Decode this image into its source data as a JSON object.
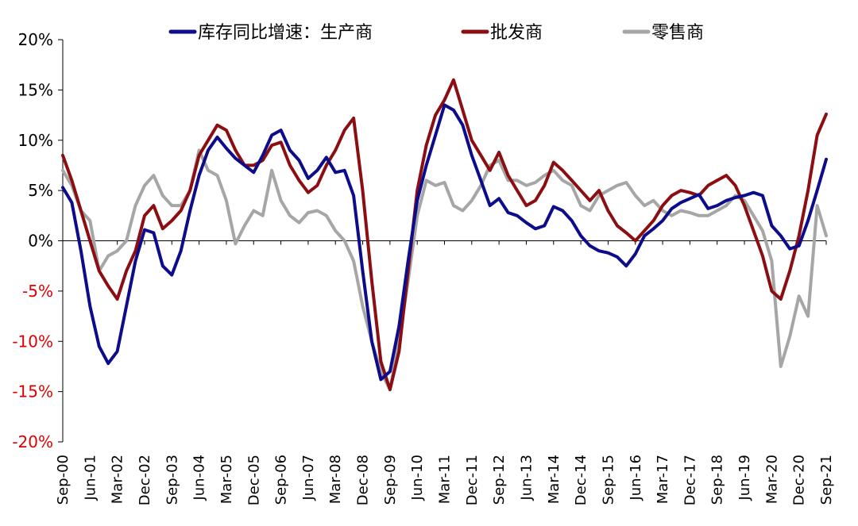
{
  "chart_data": {
    "type": "line",
    "title": "",
    "xlabel": "",
    "ylabel": "",
    "ylim": [
      -20,
      20
    ],
    "y_ticks": [
      "20%",
      "15%",
      "10%",
      "5%",
      "0%",
      "-5%",
      "-10%",
      "-15%",
      "-20%"
    ],
    "y_tick_values": [
      20,
      15,
      10,
      5,
      0,
      -5,
      -10,
      -15,
      -20
    ],
    "negative_tick_color": "#e00000",
    "x_start": "2000-09",
    "x_end": "2021-09",
    "x_ticks": [
      "Sep-00",
      "Jun-01",
      "Mar-02",
      "Dec-02",
      "Sep-03",
      "Jun-04",
      "Mar-05",
      "Dec-05",
      "Sep-06",
      "Jun-07",
      "Mar-08",
      "Dec-08",
      "Sep-09",
      "Jun-10",
      "Mar-11",
      "Dec-11",
      "Sep-12",
      "Jun-13",
      "Mar-14",
      "Dec-14",
      "Sep-15",
      "Jun-16",
      "Mar-17",
      "Dec-17",
      "Sep-18",
      "Jun-19",
      "Mar-20",
      "Dec-20",
      "Sep-21"
    ],
    "legend_position": "top",
    "grid": false,
    "series": [
      {
        "name": "库存同比增速：生产商",
        "color": "#0d0d8c",
        "points": [
          [
            "2000-09",
            5.3
          ],
          [
            "2000-12",
            3.8
          ],
          [
            "2001-03",
            -1.0
          ],
          [
            "2001-06",
            -6.5
          ],
          [
            "2001-09",
            -10.5
          ],
          [
            "2001-12",
            -12.2
          ],
          [
            "2002-03",
            -11.0
          ],
          [
            "2002-06",
            -6.5
          ],
          [
            "2002-09",
            -2.0
          ],
          [
            "2002-12",
            1.1
          ],
          [
            "2003-03",
            0.8
          ],
          [
            "2003-06",
            -2.5
          ],
          [
            "2003-09",
            -3.4
          ],
          [
            "2003-12",
            -1.0
          ],
          [
            "2004-03",
            3.0
          ],
          [
            "2004-06",
            6.5
          ],
          [
            "2004-09",
            9.0
          ],
          [
            "2004-12",
            10.3
          ],
          [
            "2005-03",
            9.2
          ],
          [
            "2005-06",
            8.2
          ],
          [
            "2005-09",
            7.5
          ],
          [
            "2005-12",
            6.8
          ],
          [
            "2006-03",
            8.5
          ],
          [
            "2006-06",
            10.5
          ],
          [
            "2006-09",
            11.0
          ],
          [
            "2006-12",
            9.0
          ],
          [
            "2007-03",
            8.0
          ],
          [
            "2007-06",
            6.2
          ],
          [
            "2007-09",
            7.0
          ],
          [
            "2007-12",
            8.3
          ],
          [
            "2008-03",
            6.8
          ],
          [
            "2008-06",
            7.0
          ],
          [
            "2008-09",
            4.5
          ],
          [
            "2008-12",
            -3.0
          ],
          [
            "2009-03",
            -10.0
          ],
          [
            "2009-06",
            -13.8
          ],
          [
            "2009-09",
            -13.0
          ],
          [
            "2009-12",
            -8.5
          ],
          [
            "2010-03",
            -2.0
          ],
          [
            "2010-06",
            4.0
          ],
          [
            "2010-09",
            7.5
          ],
          [
            "2010-12",
            10.5
          ],
          [
            "2011-03",
            13.5
          ],
          [
            "2011-06",
            13.0
          ],
          [
            "2011-09",
            11.5
          ],
          [
            "2011-12",
            8.5
          ],
          [
            "2012-03",
            6.0
          ],
          [
            "2012-06",
            3.5
          ],
          [
            "2012-09",
            4.2
          ],
          [
            "2012-12",
            2.8
          ],
          [
            "2013-03",
            2.5
          ],
          [
            "2013-06",
            1.8
          ],
          [
            "2013-09",
            1.2
          ],
          [
            "2013-12",
            1.5
          ],
          [
            "2014-03",
            3.4
          ],
          [
            "2014-06",
            3.0
          ],
          [
            "2014-09",
            2.0
          ],
          [
            "2014-12",
            0.5
          ],
          [
            "2015-03",
            -0.5
          ],
          [
            "2015-06",
            -1.0
          ],
          [
            "2015-09",
            -1.2
          ],
          [
            "2015-12",
            -1.6
          ],
          [
            "2016-03",
            -2.5
          ],
          [
            "2016-06",
            -1.3
          ],
          [
            "2016-09",
            0.5
          ],
          [
            "2016-12",
            1.2
          ],
          [
            "2017-03",
            2.0
          ],
          [
            "2017-06",
            3.2
          ],
          [
            "2017-09",
            3.8
          ],
          [
            "2017-12",
            4.2
          ],
          [
            "2018-03",
            4.6
          ],
          [
            "2018-06",
            3.2
          ],
          [
            "2018-09",
            3.5
          ],
          [
            "2018-12",
            4.0
          ],
          [
            "2019-03",
            4.3
          ],
          [
            "2019-06",
            4.5
          ],
          [
            "2019-09",
            4.8
          ],
          [
            "2019-12",
            4.5
          ],
          [
            "2020-03",
            1.5
          ],
          [
            "2020-06",
            0.5
          ],
          [
            "2020-09",
            -0.8
          ],
          [
            "2020-12",
            -0.5
          ],
          [
            "2021-03",
            2.0
          ],
          [
            "2021-06",
            5.0
          ],
          [
            "2021-09",
            8.1
          ]
        ]
      },
      {
        "name": "批发商",
        "color": "#8b0f12",
        "points": [
          [
            "2000-09",
            8.5
          ],
          [
            "2000-12",
            6.0
          ],
          [
            "2001-03",
            3.0
          ],
          [
            "2001-06",
            0.0
          ],
          [
            "2001-09",
            -3.0
          ],
          [
            "2001-12",
            -4.5
          ],
          [
            "2002-03",
            -5.8
          ],
          [
            "2002-06",
            -3.0
          ],
          [
            "2002-09",
            -1.0
          ],
          [
            "2002-12",
            2.5
          ],
          [
            "2003-03",
            3.5
          ],
          [
            "2003-06",
            1.2
          ],
          [
            "2003-09",
            2.0
          ],
          [
            "2003-12",
            3.0
          ],
          [
            "2004-03",
            5.0
          ],
          [
            "2004-06",
            8.5
          ],
          [
            "2004-09",
            10.0
          ],
          [
            "2004-12",
            11.5
          ],
          [
            "2005-03",
            11.0
          ],
          [
            "2005-06",
            9.0
          ],
          [
            "2005-09",
            7.5
          ],
          [
            "2005-12",
            7.5
          ],
          [
            "2006-03",
            8.0
          ],
          [
            "2006-06",
            9.5
          ],
          [
            "2006-09",
            9.8
          ],
          [
            "2006-12",
            7.5
          ],
          [
            "2007-03",
            6.0
          ],
          [
            "2007-06",
            4.8
          ],
          [
            "2007-09",
            5.5
          ],
          [
            "2007-12",
            7.5
          ],
          [
            "2008-03",
            9.0
          ],
          [
            "2008-06",
            11.0
          ],
          [
            "2008-09",
            12.2
          ],
          [
            "2008-12",
            5.0
          ],
          [
            "2009-03",
            -4.0
          ],
          [
            "2009-06",
            -12.0
          ],
          [
            "2009-09",
            -14.8
          ],
          [
            "2009-12",
            -11.0
          ],
          [
            "2010-03",
            -3.0
          ],
          [
            "2010-06",
            5.0
          ],
          [
            "2010-09",
            9.5
          ],
          [
            "2010-12",
            12.5
          ],
          [
            "2011-03",
            14.0
          ],
          [
            "2011-06",
            16.0
          ],
          [
            "2011-09",
            13.0
          ],
          [
            "2011-12",
            10.0
          ],
          [
            "2012-03",
            8.5
          ],
          [
            "2012-06",
            7.0
          ],
          [
            "2012-09",
            8.8
          ],
          [
            "2012-12",
            6.5
          ],
          [
            "2013-03",
            5.0
          ],
          [
            "2013-06",
            3.5
          ],
          [
            "2013-09",
            4.0
          ],
          [
            "2013-12",
            5.5
          ],
          [
            "2014-03",
            7.8
          ],
          [
            "2014-06",
            7.0
          ],
          [
            "2014-09",
            6.0
          ],
          [
            "2014-12",
            5.0
          ],
          [
            "2015-03",
            4.0
          ],
          [
            "2015-06",
            5.0
          ],
          [
            "2015-09",
            3.0
          ],
          [
            "2015-12",
            1.5
          ],
          [
            "2016-03",
            0.8
          ],
          [
            "2016-06",
            0.0
          ],
          [
            "2016-09",
            1.0
          ],
          [
            "2016-12",
            2.0
          ],
          [
            "2017-03",
            3.5
          ],
          [
            "2017-06",
            4.5
          ],
          [
            "2017-09",
            5.0
          ],
          [
            "2017-12",
            4.8
          ],
          [
            "2018-03",
            4.5
          ],
          [
            "2018-06",
            5.5
          ],
          [
            "2018-09",
            6.0
          ],
          [
            "2018-12",
            6.5
          ],
          [
            "2019-03",
            5.5
          ],
          [
            "2019-06",
            3.5
          ],
          [
            "2019-09",
            1.0
          ],
          [
            "2019-12",
            -1.5
          ],
          [
            "2020-03",
            -5.0
          ],
          [
            "2020-06",
            -5.8
          ],
          [
            "2020-09",
            -3.0
          ],
          [
            "2020-12",
            0.5
          ],
          [
            "2021-03",
            5.0
          ],
          [
            "2021-06",
            10.5
          ],
          [
            "2021-09",
            12.6
          ]
        ]
      },
      {
        "name": "零售商",
        "color": "#a6a6a6",
        "points": [
          [
            "2000-09",
            7.0
          ],
          [
            "2000-12",
            5.5
          ],
          [
            "2001-03",
            3.0
          ],
          [
            "2001-06",
            2.0
          ],
          [
            "2001-09",
            -3.0
          ],
          [
            "2001-12",
            -1.5
          ],
          [
            "2002-03",
            -1.0
          ],
          [
            "2002-06",
            0.0
          ],
          [
            "2002-09",
            3.5
          ],
          [
            "2002-12",
            5.5
          ],
          [
            "2003-03",
            6.5
          ],
          [
            "2003-06",
            4.5
          ],
          [
            "2003-09",
            3.5
          ],
          [
            "2003-12",
            3.5
          ],
          [
            "2004-03",
            5.0
          ],
          [
            "2004-06",
            9.0
          ],
          [
            "2004-09",
            7.0
          ],
          [
            "2004-12",
            6.5
          ],
          [
            "2005-03",
            4.0
          ],
          [
            "2005-06",
            -0.3
          ],
          [
            "2005-09",
            1.5
          ],
          [
            "2005-12",
            3.0
          ],
          [
            "2006-03",
            2.5
          ],
          [
            "2006-06",
            7.0
          ],
          [
            "2006-09",
            4.0
          ],
          [
            "2006-12",
            2.5
          ],
          [
            "2007-03",
            1.8
          ],
          [
            "2007-06",
            2.8
          ],
          [
            "2007-09",
            3.0
          ],
          [
            "2007-12",
            2.5
          ],
          [
            "2008-03",
            1.0
          ],
          [
            "2008-06",
            0.0
          ],
          [
            "2008-09",
            -2.0
          ],
          [
            "2008-12",
            -6.5
          ],
          [
            "2009-03",
            -10.0
          ],
          [
            "2009-06",
            -13.0
          ],
          [
            "2009-09",
            -14.8
          ],
          [
            "2009-12",
            -10.0
          ],
          [
            "2010-03",
            -4.0
          ],
          [
            "2010-06",
            2.5
          ],
          [
            "2010-09",
            6.0
          ],
          [
            "2010-12",
            5.5
          ],
          [
            "2011-03",
            5.8
          ],
          [
            "2011-06",
            3.5
          ],
          [
            "2011-09",
            3.0
          ],
          [
            "2011-12",
            4.0
          ],
          [
            "2012-03",
            5.5
          ],
          [
            "2012-06",
            7.5
          ],
          [
            "2012-09",
            8.0
          ],
          [
            "2012-12",
            6.0
          ],
          [
            "2013-03",
            6.0
          ],
          [
            "2013-06",
            5.5
          ],
          [
            "2013-09",
            5.8
          ],
          [
            "2013-12",
            6.5
          ],
          [
            "2014-03",
            7.0
          ],
          [
            "2014-06",
            6.0
          ],
          [
            "2014-09",
            5.5
          ],
          [
            "2014-12",
            3.5
          ],
          [
            "2015-03",
            3.0
          ],
          [
            "2015-06",
            4.5
          ],
          [
            "2015-09",
            5.0
          ],
          [
            "2015-12",
            5.5
          ],
          [
            "2016-03",
            5.8
          ],
          [
            "2016-06",
            4.5
          ],
          [
            "2016-09",
            3.5
          ],
          [
            "2016-12",
            4.0
          ],
          [
            "2017-03",
            3.0
          ],
          [
            "2017-06",
            2.5
          ],
          [
            "2017-09",
            3.0
          ],
          [
            "2017-12",
            2.8
          ],
          [
            "2018-03",
            2.5
          ],
          [
            "2018-06",
            2.5
          ],
          [
            "2018-09",
            3.0
          ],
          [
            "2018-12",
            3.5
          ],
          [
            "2019-03",
            4.5
          ],
          [
            "2019-06",
            4.0
          ],
          [
            "2019-09",
            2.5
          ],
          [
            "2019-12",
            1.0
          ],
          [
            "2020-03",
            -2.0
          ],
          [
            "2020-06",
            -12.5
          ],
          [
            "2020-09",
            -9.5
          ],
          [
            "2020-12",
            -5.5
          ],
          [
            "2021-03",
            -7.5
          ],
          [
            "2021-06",
            3.5
          ],
          [
            "2021-09",
            0.5
          ]
        ]
      }
    ]
  }
}
